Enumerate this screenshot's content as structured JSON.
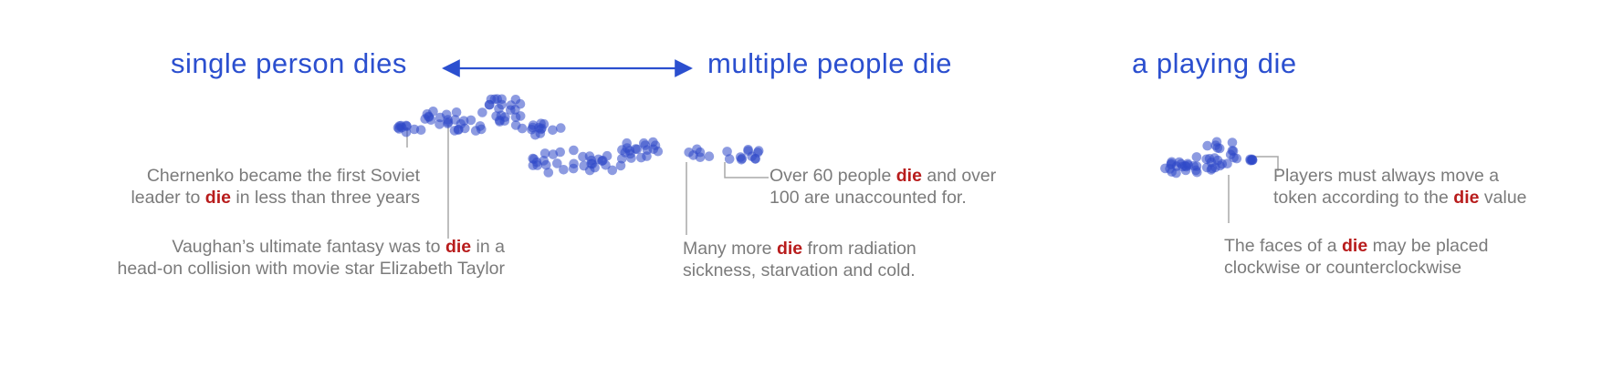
{
  "headings": {
    "single": "single person dies",
    "multiple": "multiple people die",
    "playing": "a playing die"
  },
  "colors": {
    "heading": "#2b4fcf",
    "arrow": "#2b4fcf",
    "dot": "#2f48c8",
    "keyword": "#b81c1c",
    "annotation_text": "#7b7b7b",
    "leader_line": "#a8a8a8"
  },
  "annotations": {
    "chernenko": {
      "line1": {
        "before": "Chernenko became the first Soviet",
        "keyword": "",
        "after": ""
      },
      "line2": {
        "before": "leader to ",
        "keyword": "die",
        "after": " in less than three years"
      }
    },
    "vaughan": {
      "line1": {
        "before": "Vaughan’s ultimate fantasy was to ",
        "keyword": "die",
        "after": " in a"
      },
      "line2": {
        "before": "head-on collision with movie star Elizabeth Taylor",
        "keyword": "",
        "after": ""
      }
    },
    "over60": {
      "line1": {
        "before": "Over 60 people ",
        "keyword": "die",
        "after": " and over"
      },
      "line2": {
        "before": "100 are unaccounted for.",
        "keyword": "",
        "after": ""
      }
    },
    "manymore": {
      "line1": {
        "before": "Many more ",
        "keyword": "die",
        "after": " from radiation"
      },
      "line2": {
        "before": "sickness, starvation and cold.",
        "keyword": "",
        "after": ""
      }
    },
    "players": {
      "line1": {
        "before": "Players must always move a",
        "keyword": "",
        "after": ""
      },
      "line2": {
        "before": "token according to the ",
        "keyword": "die",
        "after": " value"
      }
    },
    "faces": {
      "line1": {
        "before": "The faces of a ",
        "keyword": "die",
        "after": " may be placed"
      },
      "line2": {
        "before": "clockwise or counterclockwise",
        "keyword": "",
        "after": ""
      }
    }
  }
}
